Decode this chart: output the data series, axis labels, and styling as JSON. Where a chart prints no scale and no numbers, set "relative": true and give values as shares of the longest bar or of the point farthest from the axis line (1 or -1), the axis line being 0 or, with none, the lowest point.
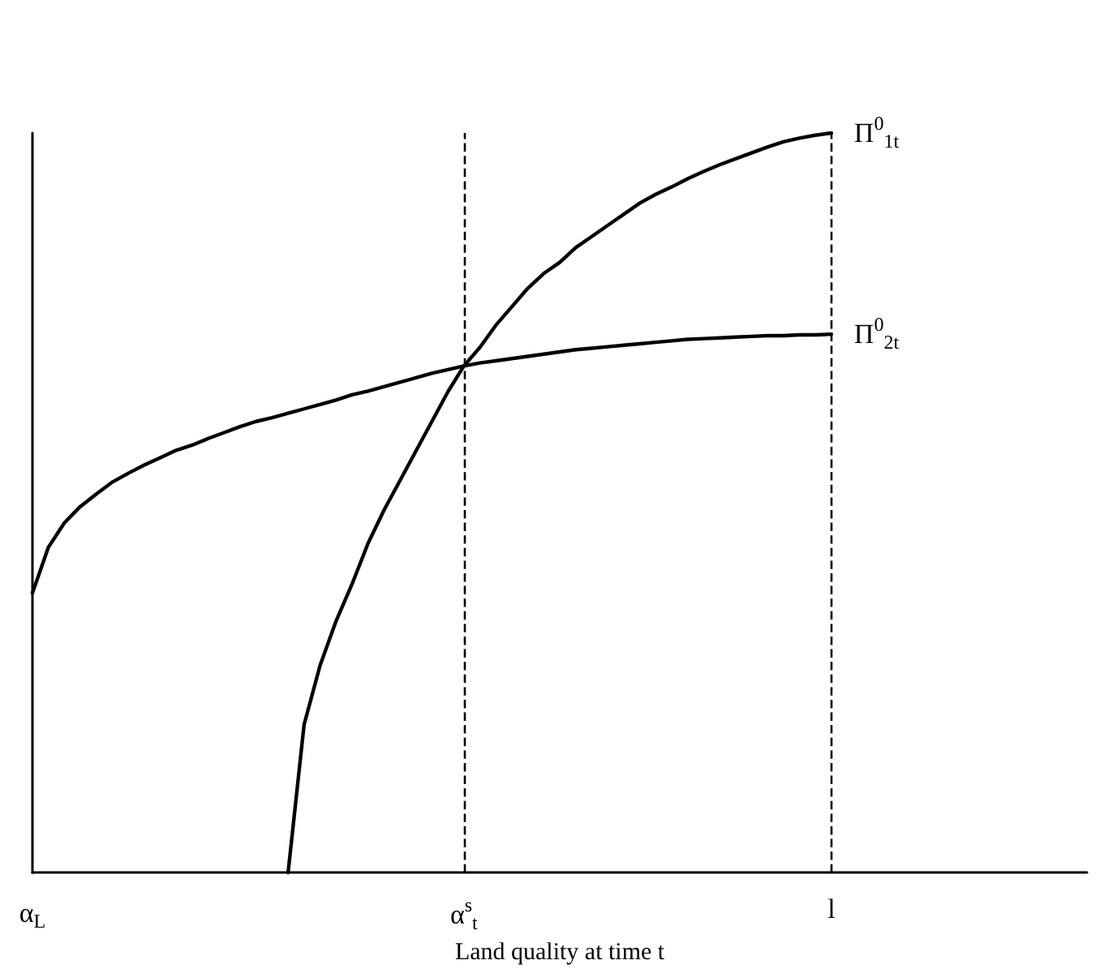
{
  "chart_data": {
    "type": "line",
    "relative": true,
    "xlabel": "Land quality at time t",
    "categories": [
      "α$_{L}$",
      null,
      null,
      null,
      null,
      null,
      null,
      null,
      null,
      null,
      null,
      null,
      null,
      null,
      null,
      null,
      null,
      null,
      null,
      null,
      null,
      null,
      null,
      null,
      null,
      null,
      null,
      "α$^{s}$$_{t}$",
      null,
      null,
      null,
      null,
      null,
      null,
      null,
      null,
      null,
      null,
      null,
      null,
      null,
      null,
      null,
      null,
      null,
      null,
      null,
      null,
      null,
      null,
      "l",
      null,
      null,
      null,
      null,
      null,
      null,
      null,
      null,
      null,
      null,
      null,
      null,
      null,
      null,
      null,
      null
    ],
    "grid": false,
    "legend": false,
    "marker": "none",
    "ref_lines": [
      {
        "axis": "x",
        "value": "α$^{s}$$_{t}$",
        "color": "#000000",
        "line_style": "dashed"
      },
      {
        "axis": "x",
        "value": "l",
        "color": "#000000",
        "line_style": "dashed"
      }
    ],
    "series": [
      {
        "name": "Π$^{0}$$_{1t}$",
        "color": "#000000",
        "values": [
          null,
          null,
          null,
          null,
          null,
          null,
          null,
          null,
          null,
          null,
          null,
          null,
          null,
          null,
          null,
          null,
          0,
          0.2,
          0.28,
          0.34,
          0.39,
          0.445,
          0.49,
          0.53,
          0.57,
          0.61,
          0.65,
          0.685,
          0.71,
          0.74,
          0.765,
          0.79,
          0.81,
          0.825,
          0.845,
          0.86,
          0.875,
          0.89,
          0.905,
          0.917,
          0.927,
          0.938,
          0.948,
          0.957,
          0.965,
          0.973,
          0.981,
          0.988,
          0.993,
          0.997,
          1,
          null,
          null,
          null,
          null,
          null,
          null,
          null,
          null,
          null,
          null,
          null,
          null,
          null,
          null,
          null,
          null
        ]
      },
      {
        "name": "Π$^{0}$$_{2t}$",
        "color": "#000000",
        "values": [
          0.378,
          0.44,
          0.473,
          0.495,
          0.512,
          0.528,
          0.54,
          0.551,
          0.561,
          0.571,
          0.578,
          0.587,
          0.595,
          0.603,
          0.61,
          0.615,
          0.621,
          0.627,
          0.633,
          0.639,
          0.646,
          0.651,
          0.657,
          0.663,
          0.669,
          0.675,
          0.68,
          0.685,
          0.689,
          0.692,
          0.695,
          0.698,
          0.701,
          0.704,
          0.707,
          0.709,
          0.711,
          0.713,
          0.715,
          0.717,
          0.719,
          0.721,
          0.722,
          0.723,
          0.724,
          0.725,
          0.726,
          0.726,
          0.727,
          0.727,
          0.728,
          null,
          null,
          null,
          null,
          null,
          null,
          null,
          null,
          null,
          null,
          null,
          null,
          null,
          null,
          null,
          null
        ]
      }
    ]
  }
}
